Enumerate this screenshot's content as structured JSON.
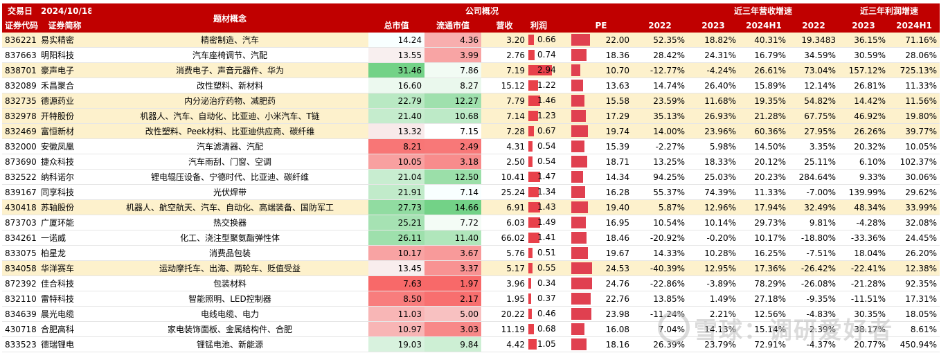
{
  "header": {
    "date_label": "交易日",
    "date_value": "2024/10/18",
    "code_label": "证券代码",
    "name_label": "证券简称",
    "concept_label": "题材概念",
    "company_group": "公司概况",
    "revenue_group": "近三年营收增速",
    "profit_group": "近三年利润增速",
    "cols": [
      "总市值",
      "流通市值",
      "营收",
      "利润",
      "PE",
      "2022",
      "2023",
      "2024H1",
      "2022",
      "2023",
      "2024H1"
    ]
  },
  "colors": {
    "header": "#c00000",
    "highlight": "#fdf1cc",
    "bar": "#e8404a"
  },
  "watermark": "雪球：调研爱好者",
  "rows": [
    {
      "code": "836221",
      "name": "易实精密",
      "concept": "精密制造、汽车",
      "mcap": "14.24",
      "fcap": "4.36",
      "rev": "3.20",
      "profit": "0.66",
      "pe": "22.00",
      "r22": "52.35%",
      "r23": "18.82%",
      "r24": "40.31%",
      "p22": "19.3483",
      "p23": "36.15%",
      "p24": "71.16%",
      "hl": true
    },
    {
      "code": "837663",
      "name": "明阳科技",
      "concept": "汽车座椅调节、汽配",
      "mcap": "13.55",
      "fcap": "3.99",
      "rev": "2.76",
      "profit": "0.74",
      "pe": "18.36",
      "r22": "28.42%",
      "r23": "24.31%",
      "r24": "16.79%",
      "p22": "34.59%",
      "p23": "30.59%",
      "p24": "28.06%",
      "hl": false
    },
    {
      "code": "838701",
      "name": "豪声电子",
      "concept": "消费电子、声音元器件、华为",
      "mcap": "31.46",
      "fcap": "7.86",
      "rev": "7.19",
      "profit": "2.94",
      "pe": "10.70",
      "r22": "-12.77%",
      "r23": "-4.24%",
      "r24": "26.61%",
      "p22": "73.04%",
      "p23": "157.12%",
      "p24": "725.13%",
      "hl": true
    },
    {
      "code": "832089",
      "name": "禾昌聚合",
      "concept": "改性塑料、新材料",
      "mcap": "16.60",
      "fcap": "8.27",
      "rev": "15.12",
      "profit": "1.22",
      "pe": "13.63",
      "r22": "14.74%",
      "r23": "26.40%",
      "r24": "15.89%",
      "p22": "12.14%",
      "p23": "26.81%",
      "p24": "11.33%",
      "hl": false
    },
    {
      "code": "832735",
      "name": "德源药业",
      "concept": "内分泌治疗药物、减肥药",
      "mcap": "22.79",
      "fcap": "12.27",
      "rev": "7.79",
      "profit": "1.46",
      "pe": "15.58",
      "r22": "23.59%",
      "r23": "11.68%",
      "r24": "19.35%",
      "p22": "54.82%",
      "p23": "14.42%",
      "p24": "11.56%",
      "hl": true
    },
    {
      "code": "832978",
      "name": "开特股份",
      "concept": "机器人、汽车、自动化、比亚迪、小米汽车、T链",
      "mcap": "21.40",
      "fcap": "10.68",
      "rev": "7.14",
      "profit": "1.23",
      "pe": "17.29",
      "r22": "35.13%",
      "r23": "26.93%",
      "r24": "21.28%",
      "p22": "67.75%",
      "p23": "46.92%",
      "p24": "19.80%",
      "hl": true
    },
    {
      "code": "832469",
      "name": "富恒新材",
      "concept": "改性塑料、Peek材料、比亚迪供应商、碳纤维",
      "mcap": "13.32",
      "fcap": "7.15",
      "rev": "7.28",
      "profit": "0.67",
      "pe": "19.74",
      "r22": "14.00%",
      "r23": "23.96%",
      "r24": "60.36%",
      "p22": "27.95%",
      "p23": "26.26%",
      "p24": "39.77%",
      "hl": true
    },
    {
      "code": "832000",
      "name": "安徽凤凰",
      "concept": "汽车滤清器、汽配",
      "mcap": "8.21",
      "fcap": "2.49",
      "rev": "4.31",
      "profit": "0.54",
      "pe": "15.39",
      "r22": "-2.27%",
      "r23": "5.98%",
      "r24": "14.50%",
      "p22": "3.35%",
      "p23": "20.32%",
      "p24": "10.05%",
      "hl": false
    },
    {
      "code": "873690",
      "name": "捷众科技",
      "concept": "汽车雨刮、门窗、空调",
      "mcap": "10.05",
      "fcap": "3.18",
      "rev": "2.50",
      "profit": "0.54",
      "pe": "18.71",
      "r22": "13.25%",
      "r23": "18.33%",
      "r24": "20.12%",
      "p22": "25.11%",
      "p23": "6.10%",
      "p24": "102.37%",
      "hl": false
    },
    {
      "code": "832522",
      "name": "纳科诺尔",
      "concept": "锂电辊压设备、宁德时代、比亚迪、碳纤维",
      "mcap": "21.04",
      "fcap": "12.50",
      "rev": "10.41",
      "profit": "1.47",
      "pe": "14.34",
      "r22": "94.25%",
      "r23": "25.03%",
      "r24": "20.23%",
      "p22": "284.64%",
      "p23": "9.33%",
      "p24": "30.06%",
      "hl": false
    },
    {
      "code": "839167",
      "name": "同享科技",
      "concept": "光伏焊带",
      "mcap": "21.91",
      "fcap": "7.14",
      "rev": "25.24",
      "profit": "1.34",
      "pe": "16.28",
      "r22": "55.37%",
      "r23": "74.39%",
      "r24": "11.33%",
      "p22": "-7.00%",
      "p23": "139.99%",
      "p24": "29.62%",
      "hl": false
    },
    {
      "code": "430418",
      "name": "苏轴股份",
      "concept": "机器人、航空航天、汽车、自动化、高端装备、国防军工",
      "mcap": "27.73",
      "fcap": "14.66",
      "rev": "6.91",
      "profit": "1.43",
      "pe": "19.40",
      "r22": "5.87%",
      "r23": "12.96%",
      "r24": "17.94%",
      "p22": "32.49%",
      "p23": "48.34%",
      "p24": "33.99%",
      "hl": true
    },
    {
      "code": "873703",
      "name": "广厦环能",
      "concept": "热交换器",
      "mcap": "25.21",
      "fcap": "7.72",
      "rev": "6.03",
      "profit": "1.49",
      "pe": "16.95",
      "r22": "10.54%",
      "r23": "10.14%",
      "r24": "29.73%",
      "p22": "9.81%",
      "p23": "-4.28%",
      "p24": "32.08%",
      "hl": false
    },
    {
      "code": "834261",
      "name": "一诺威",
      "concept": "化工、浇注型聚氨酯弹性体",
      "mcap": "26.11",
      "fcap": "11.40",
      "rev": "66.02",
      "profit": "1.41",
      "pe": "18.46",
      "r22": "-20.92%",
      "r23": "-0.20%",
      "r24": "10.17%",
      "p22": "-18.80%",
      "p23": "-33.36%",
      "p24": "24.45%",
      "hl": false
    },
    {
      "code": "833075",
      "name": "柏星龙",
      "concept": "消费品包装",
      "mcap": "10.17",
      "fcap": "3.67",
      "rev": "5.76",
      "profit": "0.51",
      "pe": "19.67",
      "r22": "14.33%",
      "r23": "10.28%",
      "r24": "16.25%",
      "p22": "-7.51%",
      "p23": "18.04%",
      "p24": "26.20%",
      "hl": false
    },
    {
      "code": "834058",
      "name": "华洋赛车",
      "concept": "运动摩托车、出海、两轮车、贬值受益",
      "mcap": "13.45",
      "fcap": "3.37",
      "rev": "5.17",
      "profit": "0.55",
      "pe": "24.53",
      "r22": "-40.39%",
      "r23": "12.95%",
      "r24": "17.36%",
      "p22": "-26.42%",
      "p23": "-22.41%",
      "p24": "12.38%",
      "hl": true
    },
    {
      "code": "872392",
      "name": "佳合科技",
      "concept": "包装材料",
      "mcap": "7.63",
      "fcap": "1.97",
      "rev": "3.96",
      "profit": "0.34",
      "pe": "24.76",
      "r22": "-22.86%",
      "r23": "-3.89%",
      "r24": "78.29%",
      "p22": "-26.08%",
      "p23": "-21.28%",
      "p24": "92.35%",
      "hl": false
    },
    {
      "code": "832110",
      "name": "雷特科技",
      "concept": "智能照明、LED控制器",
      "mcap": "8.50",
      "fcap": "2.17",
      "rev": "1.95",
      "profit": "0.37",
      "pe": "22.76",
      "r22": "13.85%",
      "r23": "1.49%",
      "r24": "27.18%",
      "p22": "-9.35%",
      "p23": "-11.51%",
      "p24": "17.31%",
      "hl": false
    },
    {
      "code": "834639",
      "name": "晨光电缆",
      "concept": "电线电缆、电力",
      "mcap": "11.03",
      "fcap": "5.00",
      "rev": "20.22",
      "profit": "0.46",
      "pe": "23.98",
      "r22": "-11.24%",
      "r23": "2.21%",
      "r24": "12.56%",
      "p22": "-4.83%",
      "p23": "30.35%",
      "p24": "18.05%",
      "hl": false
    },
    {
      "code": "430718",
      "name": "合肥高科",
      "concept": "家电装饰面板、金属结构件、合肥",
      "mcap": "10.97",
      "fcap": "3.03",
      "rev": "11.19",
      "profit": "0.68",
      "pe": "16.08",
      "r22": "7.04%",
      "r23": "14.13%",
      "r24": "15.14%",
      "p22": "2.39%",
      "p23": "38.17%",
      "p24": "8.61%",
      "hl": false
    },
    {
      "code": "833523",
      "name": "德瑞锂电",
      "concept": "锂锰电池、新能源",
      "mcap": "19.03",
      "fcap": "9.84",
      "rev": "4.42",
      "profit": "1.05",
      "pe": "18.16",
      "r22": "26.39%",
      "r23": "23.79%",
      "r24": "72.91%",
      "p22": "-4.37%",
      "p23": "20.77%",
      "p24": "450.94%",
      "hl": false
    }
  ]
}
